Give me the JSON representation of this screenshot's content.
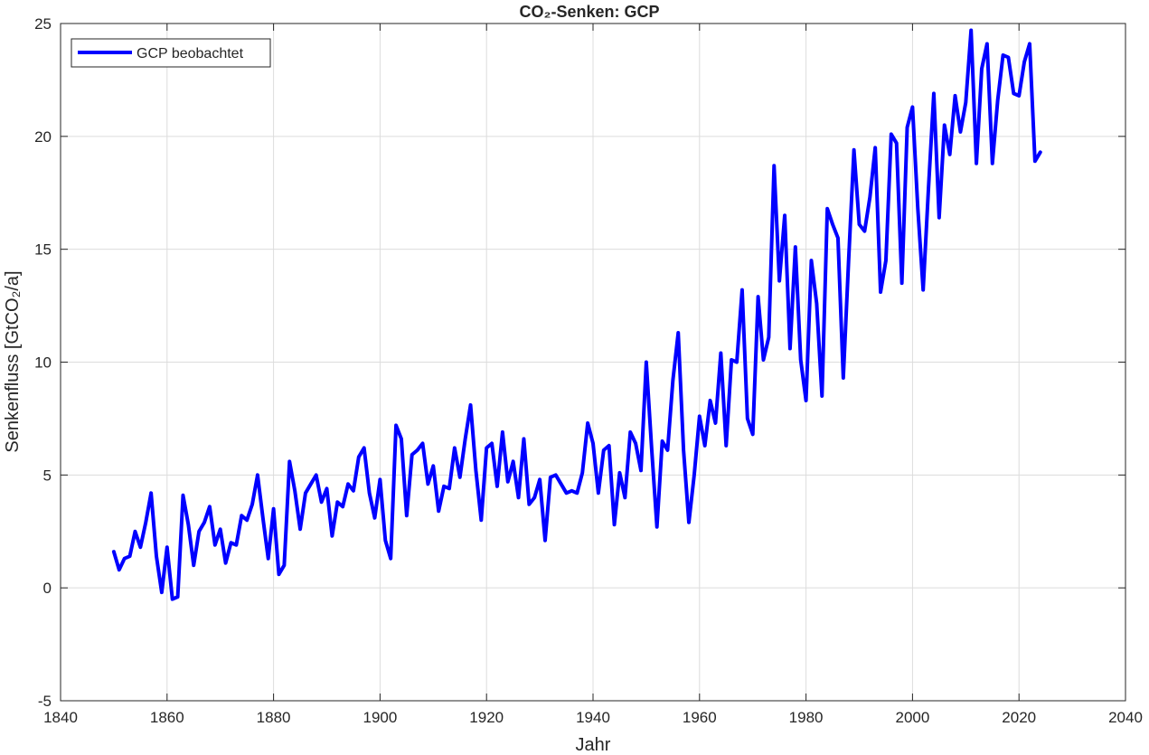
{
  "chart_data": {
    "type": "line",
    "title": "CO₂-Senken: GCP",
    "xlabel": "Jahr",
    "ylabel": "Senkenfluss [GtCO₂/a]",
    "xlim": [
      1840,
      2040
    ],
    "ylim": [
      -5,
      25
    ],
    "xticks": [
      "1840",
      "1860",
      "1880",
      "1900",
      "1920",
      "1940",
      "1960",
      "1980",
      "2000",
      "2020",
      "2040"
    ],
    "yticks": [
      "-5",
      "0",
      "5",
      "10",
      "15",
      "20",
      "25"
    ],
    "grid": true,
    "legend_position": "top-left",
    "series": [
      {
        "name": "GCP beobachtet",
        "color": "#0000ff",
        "x": [
          1850,
          1851,
          1852,
          1853,
          1854,
          1855,
          1856,
          1857,
          1858,
          1859,
          1860,
          1861,
          1862,
          1863,
          1864,
          1865,
          1866,
          1867,
          1868,
          1869,
          1870,
          1871,
          1872,
          1873,
          1874,
          1875,
          1876,
          1877,
          1878,
          1879,
          1880,
          1881,
          1882,
          1883,
          1884,
          1885,
          1886,
          1887,
          1888,
          1889,
          1890,
          1891,
          1892,
          1893,
          1894,
          1895,
          1896,
          1897,
          1898,
          1899,
          1900,
          1901,
          1902,
          1903,
          1904,
          1905,
          1906,
          1907,
          1908,
          1909,
          1910,
          1911,
          1912,
          1913,
          1914,
          1915,
          1916,
          1917,
          1918,
          1919,
          1920,
          1921,
          1922,
          1923,
          1924,
          1925,
          1926,
          1927,
          1928,
          1929,
          1930,
          1931,
          1932,
          1933,
          1934,
          1935,
          1936,
          1937,
          1938,
          1939,
          1940,
          1941,
          1942,
          1943,
          1944,
          1945,
          1946,
          1947,
          1948,
          1949,
          1950,
          1951,
          1952,
          1953,
          1954,
          1955,
          1956,
          1957,
          1958,
          1959,
          1960,
          1961,
          1962,
          1963,
          1964,
          1965,
          1966,
          1967,
          1968,
          1969,
          1970,
          1971,
          1972,
          1973,
          1974,
          1975,
          1976,
          1977,
          1978,
          1979,
          1980,
          1981,
          1982,
          1983,
          1984,
          1985,
          1986,
          1987,
          1988,
          1989,
          1990,
          1991,
          1992,
          1993,
          1994,
          1995,
          1996,
          1997,
          1998,
          1999,
          2000,
          2001,
          2002,
          2003,
          2004,
          2005,
          2006,
          2007,
          2008,
          2009,
          2010,
          2011,
          2012,
          2013,
          2014,
          2015,
          2016,
          2017,
          2018,
          2019,
          2020,
          2021,
          2022,
          2023,
          2024
        ],
        "y": [
          1.6,
          0.8,
          1.3,
          1.4,
          2.5,
          1.8,
          2.9,
          4.2,
          1.4,
          -0.2,
          1.8,
          -0.5,
          -0.4,
          4.1,
          2.8,
          1.0,
          2.5,
          2.9,
          3.6,
          1.9,
          2.6,
          1.1,
          2.0,
          1.9,
          3.2,
          3.0,
          3.7,
          5.0,
          3.1,
          1.3,
          3.5,
          0.6,
          1.0,
          5.6,
          4.3,
          2.6,
          4.2,
          4.6,
          5.0,
          3.8,
          4.4,
          2.3,
          3.8,
          3.6,
          4.6,
          4.3,
          5.8,
          6.2,
          4.2,
          3.1,
          4.8,
          2.1,
          1.3,
          7.2,
          6.6,
          3.2,
          5.9,
          6.1,
          6.4,
          4.6,
          5.4,
          3.4,
          4.5,
          4.4,
          6.2,
          4.9,
          6.6,
          8.1,
          5.2,
          3.0,
          6.2,
          6.4,
          4.5,
          6.9,
          4.7,
          5.6,
          4.0,
          6.6,
          3.7,
          4.0,
          4.8,
          2.1,
          4.9,
          5.0,
          4.6,
          4.2,
          4.3,
          4.2,
          5.1,
          7.3,
          6.4,
          4.2,
          6.1,
          6.3,
          2.8,
          5.1,
          4.0,
          6.9,
          6.4,
          5.2,
          10.0,
          6.2,
          2.7,
          6.5,
          6.1,
          9.2,
          11.3,
          6.1,
          2.9,
          5.0,
          7.6,
          6.3,
          8.3,
          7.3,
          10.4,
          6.3,
          10.1,
          10.0,
          13.2,
          7.5,
          6.8,
          12.9,
          10.1,
          11.1,
          18.7,
          13.6,
          16.5,
          10.6,
          15.1,
          10.1,
          8.3,
          14.5,
          12.6,
          8.5,
          16.8,
          16.1,
          15.5,
          9.3,
          14.5,
          19.4,
          16.1,
          15.8,
          17.3,
          19.5,
          13.1,
          14.5,
          20.1,
          19.7,
          13.5,
          20.4,
          21.3,
          16.8,
          13.2,
          17.7,
          21.9,
          16.4,
          20.5,
          19.2,
          21.8,
          20.2,
          21.5,
          24.7,
          18.8,
          23.0,
          24.1,
          18.8,
          21.6,
          23.6,
          23.5,
          21.9,
          21.8,
          23.3,
          24.1,
          18.9,
          19.3
        ]
      }
    ]
  }
}
